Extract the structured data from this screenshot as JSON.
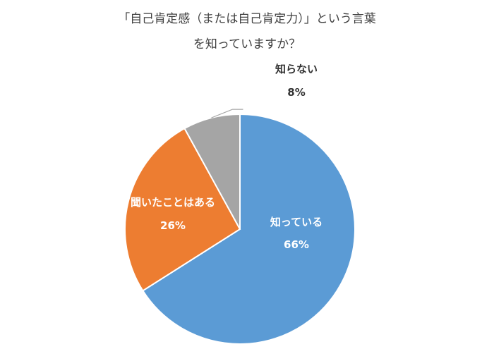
{
  "chart_data": {
    "type": "pie",
    "title_lines": [
      "「自己肯定感（または自己肯定力）」という言葉",
      "を知っていますか？"
    ],
    "categories": [
      "知っている",
      "聞いたことはある",
      "知らない"
    ],
    "values": [
      66,
      26,
      8
    ],
    "value_labels": [
      "66%",
      "26%",
      "8%"
    ],
    "colors": [
      "#5B9BD5",
      "#ED7D31",
      "#A5A5A5"
    ],
    "label_colors": [
      "#ffffff",
      "#ffffff",
      "#333333"
    ],
    "start": "12 o'clock",
    "direction": "clockwise",
    "legend": "none"
  }
}
